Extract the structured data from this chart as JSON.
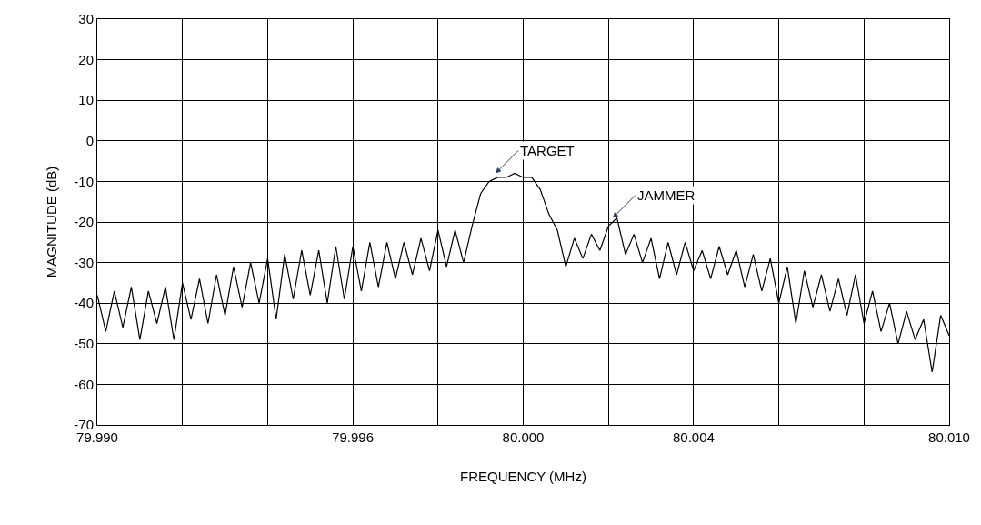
{
  "chart_data": {
    "type": "line",
    "xlabel": "FREQUENCY (MHz)",
    "ylabel": "MAGNITUDE (dB)",
    "x": [
      79.99,
      79.9902,
      79.9904,
      79.9906,
      79.9908,
      79.991,
      79.9912,
      79.9914,
      79.9916,
      79.9918,
      79.992,
      79.9922,
      79.9924,
      79.9926,
      79.9928,
      79.993,
      79.9932,
      79.9934,
      79.9936,
      79.9938,
      79.994,
      79.9942,
      79.9944,
      79.9946,
      79.9948,
      79.995,
      79.9952,
      79.9954,
      79.9956,
      79.9958,
      79.996,
      79.9962,
      79.9964,
      79.9966,
      79.9968,
      79.997,
      79.9972,
      79.9974,
      79.9976,
      79.9978,
      79.998,
      79.9982,
      79.9984,
      79.9986,
      79.9988,
      79.999,
      79.9992,
      79.9994,
      79.9996,
      79.9998,
      80.0,
      80.0002,
      80.0004,
      80.0006,
      80.0008,
      80.001,
      80.0012,
      80.0014,
      80.0016,
      80.0018,
      80.002,
      80.0022,
      80.0024,
      80.0026,
      80.0028,
      80.003,
      80.0032,
      80.0034,
      80.0036,
      80.0038,
      80.004,
      80.0042,
      80.0044,
      80.0046,
      80.0048,
      80.005,
      80.0052,
      80.0054,
      80.0056,
      80.0058,
      80.006,
      80.0062,
      80.0064,
      80.0066,
      80.0068,
      80.007,
      80.0072,
      80.0074,
      80.0076,
      80.0078,
      80.008,
      80.0082,
      80.0084,
      80.0086,
      80.0088,
      80.009,
      80.0092,
      80.0094,
      80.0096,
      80.0098,
      80.01
    ],
    "series": [
      {
        "color": "#000000",
        "values": [
          -38,
          -47,
          -37,
          -46,
          -36,
          -49,
          -37,
          -45,
          -36,
          -49,
          -35,
          -44,
          -34,
          -45,
          -33,
          -43,
          -31,
          -41,
          -30,
          -40,
          -29,
          -44,
          -28,
          -39,
          -27,
          -38,
          -27,
          -40,
          -26,
          -39,
          -26,
          -37,
          -25,
          -36,
          -25,
          -34,
          -25,
          -33,
          -24,
          -32,
          -22,
          -31,
          -22,
          -30,
          -21,
          -13,
          -10,
          -9,
          -9,
          -8,
          -9,
          -9,
          -12,
          -18,
          -22,
          -31,
          -24,
          -29,
          -23,
          -27,
          -21,
          -19,
          -28,
          -23,
          -30,
          -24,
          -34,
          -25,
          -33,
          -25,
          -32,
          -27,
          -34,
          -26,
          -33,
          -27,
          -36,
          -28,
          -37,
          -29,
          -40,
          -31,
          -45,
          -32,
          -41,
          -33,
          -42,
          -34,
          -43,
          -33,
          -45,
          -37,
          -47,
          -40,
          -50,
          -42,
          -49,
          -44,
          -57,
          -43,
          -48
        ]
      }
    ],
    "xlim": [
      79.99,
      80.01
    ],
    "xticks": [
      {
        "value": 79.99,
        "label": "79.990"
      },
      {
        "value": 79.992,
        "label": null
      },
      {
        "value": 79.994,
        "label": null
      },
      {
        "value": 79.996,
        "label": "79.996"
      },
      {
        "value": 79.998,
        "label": null
      },
      {
        "value": 80.0,
        "label": "80.000"
      },
      {
        "value": 80.002,
        "label": null
      },
      {
        "value": 80.004,
        "label": "80.004"
      },
      {
        "value": 80.006,
        "label": null
      },
      {
        "value": 80.008,
        "label": null
      },
      {
        "value": 80.01,
        "label": "80.010"
      }
    ],
    "ylim": [
      -70,
      30
    ],
    "yticks": [
      -70,
      -60,
      -50,
      -40,
      -30,
      -20,
      -10,
      0,
      10,
      20,
      30
    ],
    "annotations": [
      {
        "text": "TARGET",
        "x": 79.99935,
        "y": -8
      },
      {
        "text": "JAMMER",
        "x": 80.0021,
        "y": -19
      }
    ],
    "grid": true,
    "legend": false,
    "marker": "none",
    "line_style": "solid"
  }
}
